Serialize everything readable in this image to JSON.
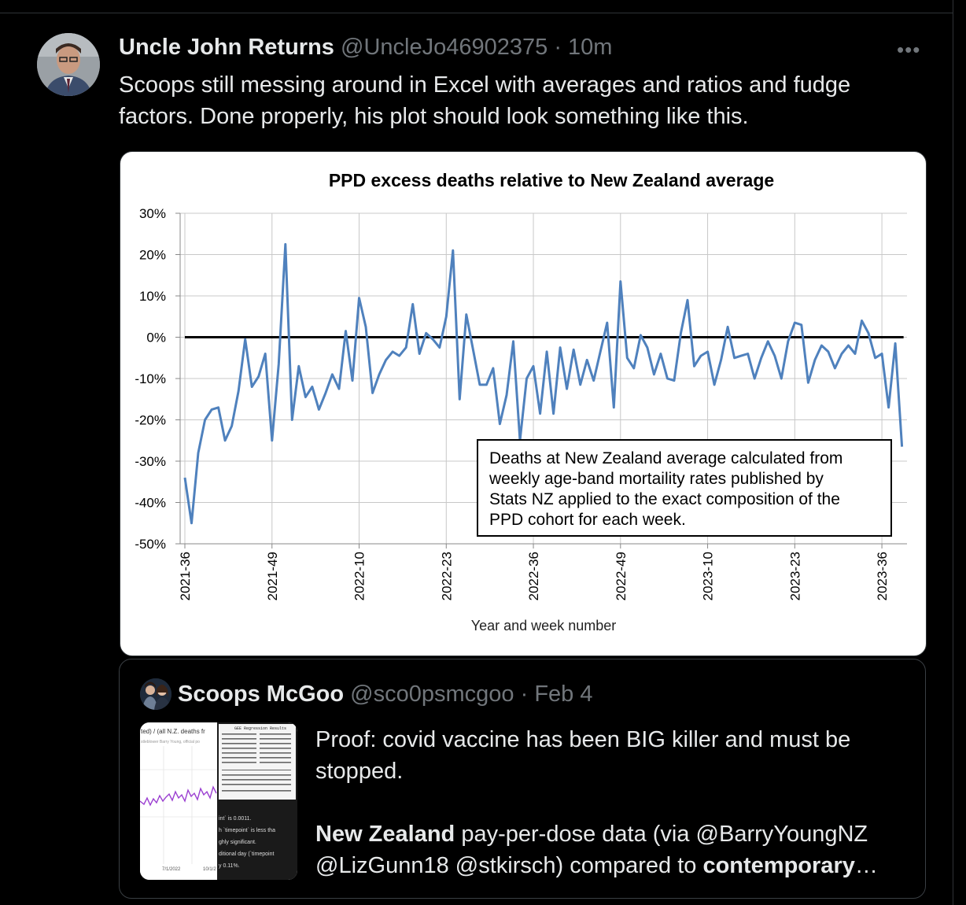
{
  "tweet": {
    "author_name": "Uncle John Returns",
    "author_handle": "@UncleJo46902375",
    "separator": "·",
    "time": "10m",
    "more_label": "•••",
    "text": "Scoops still messing around in Excel with averages and ratios and fudge factors. Done properly, his plot should look something like this."
  },
  "chart_data": {
    "type": "line",
    "title": "PPD excess deaths relative to New Zealand average",
    "xlabel": "Year and week number",
    "ylabel": "",
    "ylim": [
      -50,
      30
    ],
    "y_ticks": [
      "30%",
      "20%",
      "10%",
      "0%",
      "-10%",
      "-20%",
      "-30%",
      "-40%",
      "-50%"
    ],
    "x_tick_labels": [
      "2021-36",
      "2021-49",
      "2022-10",
      "2022-23",
      "2022-36",
      "2022-49",
      "2023-10",
      "2023-23",
      "2023-36"
    ],
    "grid": true,
    "reference_line": 0,
    "series": [
      {
        "color": "#4f81bd",
        "values": [
          -34,
          -45,
          -28,
          -20,
          -17.5,
          -17,
          -25,
          -21.5,
          -13,
          -0.5,
          -12,
          -9.5,
          -4,
          -25,
          -6.5,
          22.5,
          -20,
          -7,
          -14.5,
          -12,
          -17.5,
          -13.5,
          -9,
          -12.5,
          1.5,
          -10.5,
          9.5,
          2.5,
          -13.5,
          -9,
          -5.5,
          -3.5,
          -4.5,
          -2.5,
          8,
          -4,
          1,
          -0.5,
          -2.5,
          5,
          21,
          -15,
          5.5,
          -3,
          -11.5,
          -11.5,
          -7.5,
          -21,
          -14,
          -1,
          -25,
          -10,
          -7,
          -18.5,
          -3.5,
          -18.5,
          -2.5,
          -12.5,
          -3,
          -11.5,
          -5.5,
          -10.5,
          -3.5,
          3.5,
          -17,
          13.5,
          -5,
          -7.5,
          0.5,
          -2.5,
          -9,
          -4,
          -10,
          -10.5,
          1,
          9,
          -7,
          -4.5,
          -3.5,
          -11.5,
          -5.5,
          2.5,
          -5,
          -4.5,
          -4,
          -10,
          -5,
          -1,
          -4.5,
          -10,
          -1,
          3.5,
          3,
          -11,
          -5.5,
          -2,
          -3.5,
          -7.5,
          -4,
          -2,
          -4,
          4,
          1,
          -5,
          -4,
          -17,
          -1.5,
          -26.5
        ]
      }
    ],
    "annotation": "Deaths at New Zealand average calculated from weekly age-band mortaility rates published by Stats NZ applied to the exact composition of the PPD cohort for each week."
  },
  "quote": {
    "author_name": "Scoops McGoo",
    "author_handle": "@sco0psmcgoo",
    "separator": "·",
    "time": "Feb 4",
    "text_line1": "Proof: covid vaccine has been BIG killer and must be stopped.",
    "bold_1": "New Zealand",
    "text_mid": " pay-per-dose data (via @BarryYoungNZ @LizGunn18 @stkirsch) compared to ",
    "bold_2": "contemporary",
    "ellipsis": "…",
    "thumb_texts": {
      "left_title": "ted) / (all N.Z. deaths fr",
      "left_sub": "stleblower Barry Young, official po",
      "date_1": "7/1/2022",
      "date_2": "10/1/2",
      "right_head": "GEE Regression Results",
      "r1": "int` is 0.0011.",
      "r2": "h `timepoint` is less tha",
      "r3": "ghly significant.",
      "r4": "ditional day (`timepoint",
      "r5": "y 0.11%."
    }
  },
  "colors": {
    "background": "#000000",
    "text_primary": "#e7e9ea",
    "text_secondary": "#71767b",
    "border": "#2f3336",
    "series_line": "#4f81bd"
  }
}
